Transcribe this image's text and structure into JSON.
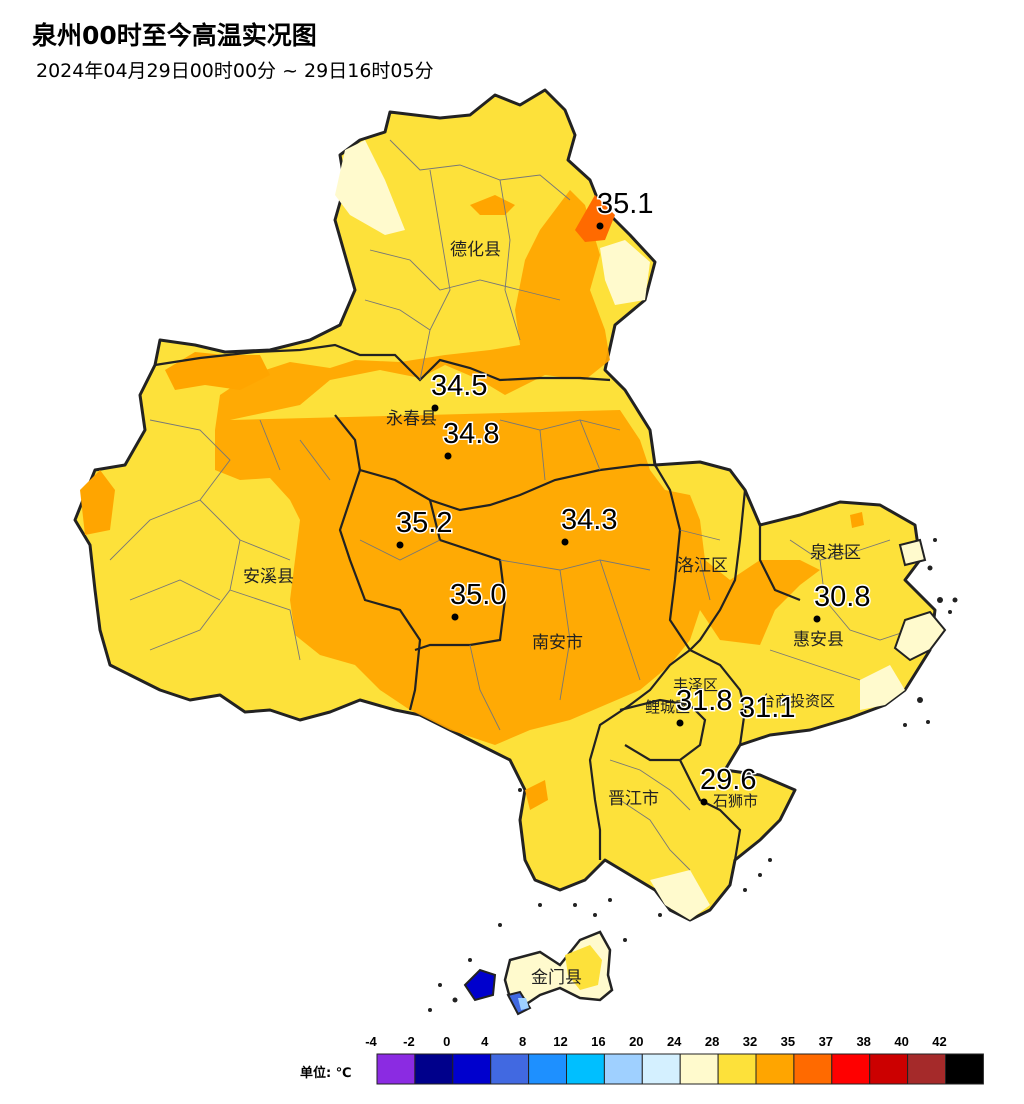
{
  "title": "泉州00时至今高温实况图",
  "subtitle": "2024年04月29日00时00分 ~ 29日16时05分",
  "regions": [
    {
      "name": "德化县"
    },
    {
      "name": "永春县"
    },
    {
      "name": "安溪县"
    },
    {
      "name": "南安市"
    },
    {
      "name": "洛江区"
    },
    {
      "name": "泉港区"
    },
    {
      "name": "惠安县"
    },
    {
      "name": "丰泽区"
    },
    {
      "name": "鲤城区"
    },
    {
      "name": "台商投资区"
    },
    {
      "name": "晋江市"
    },
    {
      "name": "石狮市"
    },
    {
      "name": "金门县"
    }
  ],
  "stations": [
    {
      "value": "35.1"
    },
    {
      "value": "34.5"
    },
    {
      "value": "34.8"
    },
    {
      "value": "35.2"
    },
    {
      "value": "34.3"
    },
    {
      "value": "35.0"
    },
    {
      "value": "30.8"
    },
    {
      "value": "31.8"
    },
    {
      "value": "31.1"
    },
    {
      "value": "29.6"
    }
  ],
  "legend": {
    "unit_label": "单位: ℃",
    "ticks": [
      "-4",
      "-2",
      "0",
      "4",
      "8",
      "12",
      "16",
      "20",
      "24",
      "28",
      "32",
      "35",
      "37",
      "38",
      "40",
      "42"
    ],
    "colors": [
      "#8b2be2",
      "#00008b",
      "#0000cd",
      "#4169e1",
      "#1e90ff",
      "#00bfff",
      "#9fd0ff",
      "#d4f0ff",
      "#fffacd",
      "#fde13a",
      "#ffa500",
      "#ff6a00",
      "#ff0000",
      "#cc0000",
      "#a52a2a",
      "#000000"
    ]
  }
}
